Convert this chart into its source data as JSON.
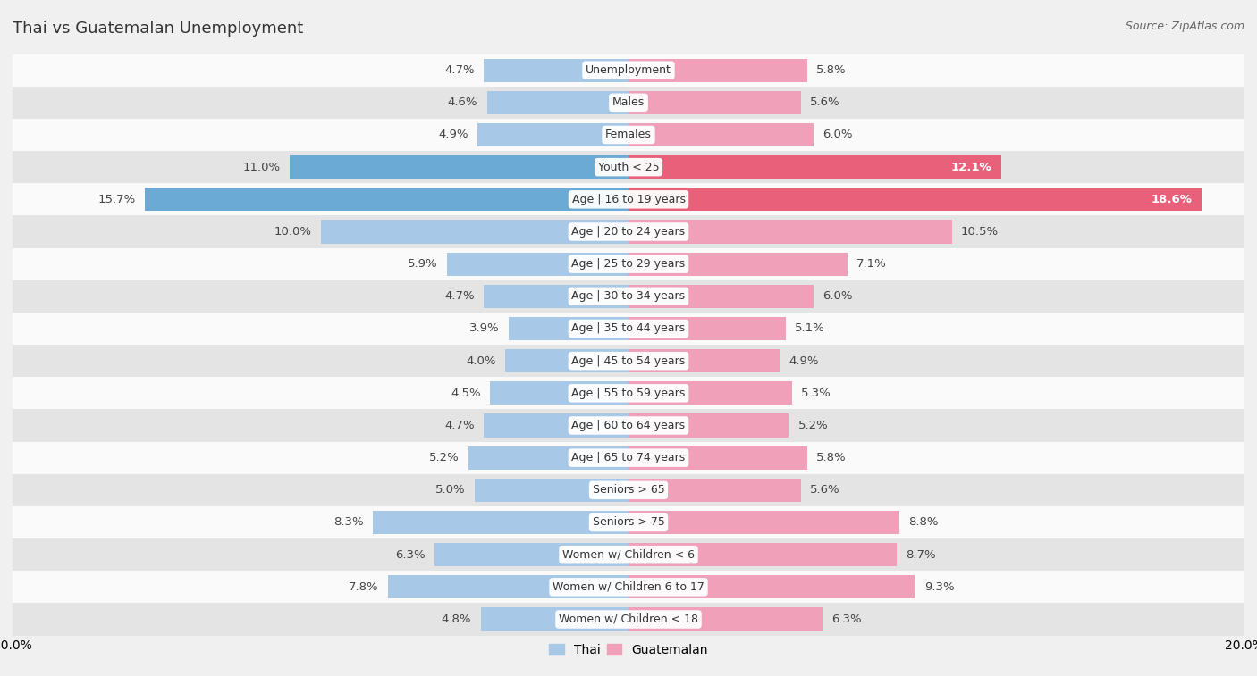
{
  "title": "Thai vs Guatemalan Unemployment",
  "source": "Source: ZipAtlas.com",
  "categories": [
    "Unemployment",
    "Males",
    "Females",
    "Youth < 25",
    "Age | 16 to 19 years",
    "Age | 20 to 24 years",
    "Age | 25 to 29 years",
    "Age | 30 to 34 years",
    "Age | 35 to 44 years",
    "Age | 45 to 54 years",
    "Age | 55 to 59 years",
    "Age | 60 to 64 years",
    "Age | 65 to 74 years",
    "Seniors > 65",
    "Seniors > 75",
    "Women w/ Children < 6",
    "Women w/ Children 6 to 17",
    "Women w/ Children < 18"
  ],
  "thai_values": [
    4.7,
    4.6,
    4.9,
    11.0,
    15.7,
    10.0,
    5.9,
    4.7,
    3.9,
    4.0,
    4.5,
    4.7,
    5.2,
    5.0,
    8.3,
    6.3,
    7.8,
    4.8
  ],
  "guatemalan_values": [
    5.8,
    5.6,
    6.0,
    12.1,
    18.6,
    10.5,
    7.1,
    6.0,
    5.1,
    4.9,
    5.3,
    5.2,
    5.8,
    5.6,
    8.8,
    8.7,
    9.3,
    6.3
  ],
  "thai_color": "#A8C8E8",
  "guatemalan_color": "#F0A0B8",
  "thai_color_highlight": "#6aaad4",
  "guatemalan_color_highlight": "#e8607a",
  "background_color": "#f0f0f0",
  "row_bg_light": "#fafafa",
  "row_bg_dark": "#e4e4e4",
  "xlim": 20.0,
  "bar_height": 0.72,
  "label_fontsize": 9.0,
  "title_fontsize": 13,
  "source_fontsize": 9,
  "value_fontsize": 9.5
}
